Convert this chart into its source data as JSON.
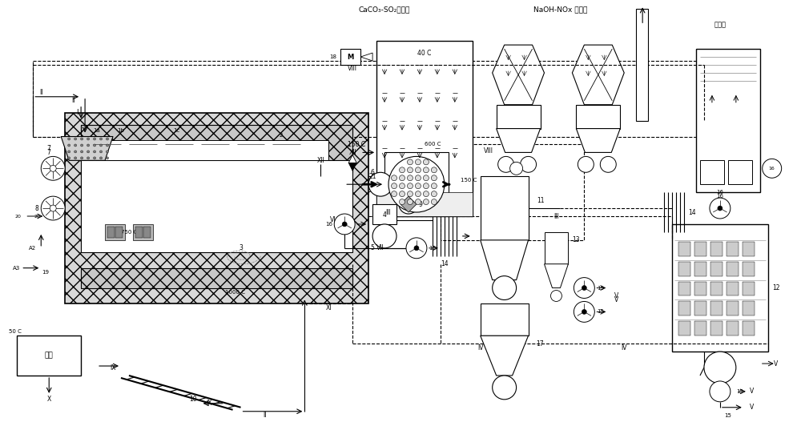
{
  "bg_color": "#ffffff",
  "labels": {
    "caco3_so2": "CaCO₃-SO₂洗涤器",
    "naoh_nox": "NaOH-NOx 洗涤器",
    "cooling_tower": "冷却塔",
    "filter": "过筛"
  }
}
